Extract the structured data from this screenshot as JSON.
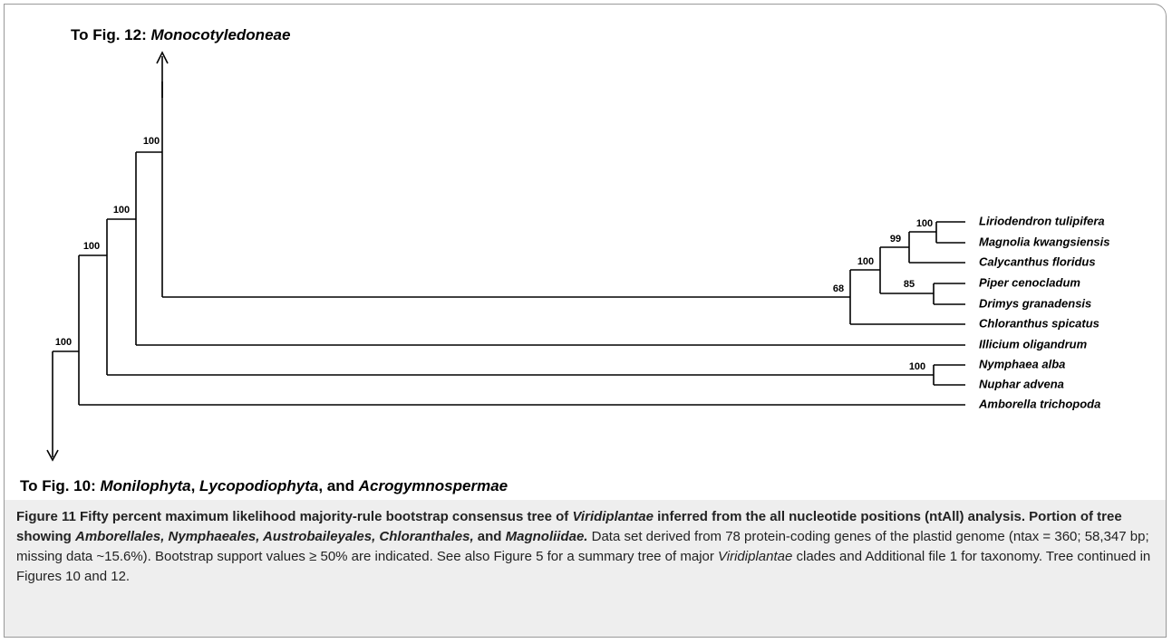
{
  "top_label": [
    {
      "text": "To Fig. 12: ",
      "italic": false
    },
    {
      "text": "Monocotyledoneae",
      "italic": true
    }
  ],
  "tips": [
    "Liriodendron tulipifera",
    "Magnolia kwangsiensis",
    "Calycanthus floridus",
    "Piper cenocladum",
    "Drimys granadensis",
    "Chloranthus spicatus",
    "Illicium oligandrum",
    "Nymphaea alba",
    "Nuphar advena",
    "Amborella trichopoda"
  ],
  "supports": [
    "100",
    "100",
    "100",
    "100",
    "68",
    "100",
    "99",
    "100",
    "85",
    "100"
  ],
  "bottom_label": [
    {
      "text": "To Fig. 10: ",
      "italic": false
    },
    {
      "text": "Monilophyta",
      "italic": true
    },
    {
      "text": ", ",
      "italic": false
    },
    {
      "text": "Lycopodiophyta",
      "italic": true
    },
    {
      "text": ", and ",
      "italic": false
    },
    {
      "text": "Acrogymnospermae",
      "italic": true
    }
  ],
  "caption": [
    {
      "text": "Figure 11 Fifty percent maximum likelihood majority-rule bootstrap consensus tree of ",
      "bold": true,
      "italic": false
    },
    {
      "text": "Viridiplantae",
      "bold": true,
      "italic": true
    },
    {
      "text": " inferred from the all nucleotide positions (ntAll) analysis. Portion of tree showing ",
      "bold": true,
      "italic": false
    },
    {
      "text": "Amborellales, Nymphaeales, Austrobaileyales, Chloranthales,",
      "bold": true,
      "italic": true
    },
    {
      "text": " and ",
      "bold": true,
      "italic": false
    },
    {
      "text": "Magnoliidae.",
      "bold": true,
      "italic": true
    },
    {
      "text": " Data set derived from 78 protein-coding genes of the plastid genome (ntax = 360; 58,347 bp; missing data ~15.6%). Bootstrap support values ≥ 50% are indicated. See also Figure 5 for a summary tree of major ",
      "bold": false,
      "italic": false
    },
    {
      "text": "Viridiplantae",
      "bold": false,
      "italic": true
    },
    {
      "text": " clades and Additional file 1 for taxonomy. Tree continued in Figures 10 and 12.",
      "bold": false,
      "italic": false
    }
  ]
}
